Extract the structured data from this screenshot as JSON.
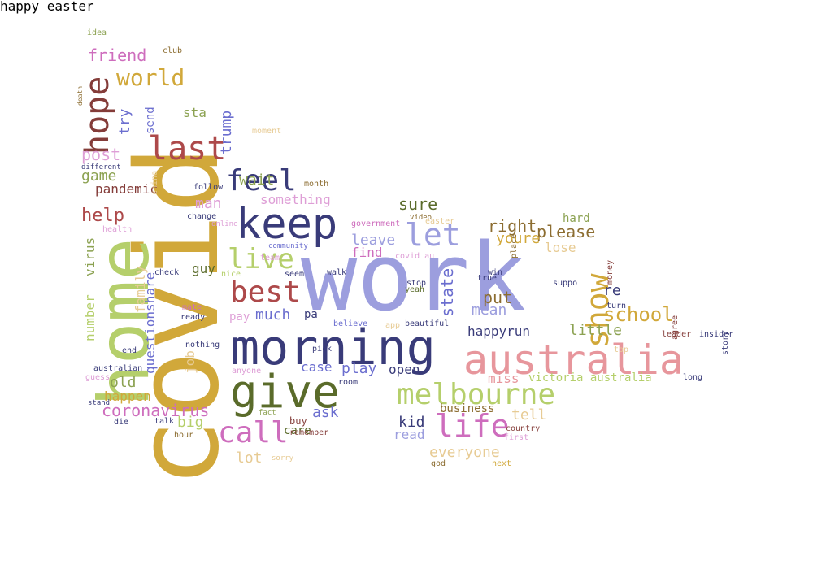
{
  "colors": {
    "background": "#ffffff",
    "olive": "#bcbd22",
    "dark_olive": "#5a6b2a",
    "gold": "#d1a83a",
    "light_green": "#b5cf6b",
    "sage": "#8ca252",
    "periwinkle": "#9c9ede",
    "navy": "#393b79",
    "slate_blue": "#6b6ecf",
    "rose": "#e7969c",
    "crimson": "#ad494a",
    "maroon": "#843c39",
    "magenta": "#ce6dbd",
    "orchid": "#de9ed6",
    "tan": "#e7cb94",
    "brown": "#8c6d31"
  },
  "words": [
    {
      "text": "covid",
      "color": "gold",
      "rot": 1
    },
    {
      "text": "work",
      "color": "periwinkle",
      "rot": 0
    },
    {
      "text": "morning",
      "color": "navy",
      "rot": 0
    },
    {
      "text": "australia",
      "color": "rose",
      "rot": 0
    },
    {
      "text": "home",
      "color": "light_green",
      "rot": 1
    },
    {
      "text": "keep",
      "color": "navy",
      "rot": 0
    },
    {
      "text": "give",
      "color": "dark_olive",
      "rot": 0
    },
    {
      "text": "melbourne",
      "color": "light_green",
      "rot": 0
    },
    {
      "text": "life",
      "color": "magenta",
      "rot": 0
    },
    {
      "text": "call",
      "color": "magenta",
      "rot": 0
    },
    {
      "text": "best",
      "color": "crimson",
      "rot": 0
    },
    {
      "text": "feel",
      "color": "navy",
      "rot": 0
    },
    {
      "text": "let",
      "color": "periwinkle",
      "rot": 0
    },
    {
      "text": "live",
      "color": "light_green",
      "rot": 0
    },
    {
      "text": "show",
      "color": "gold",
      "rot": 1
    },
    {
      "text": "hope",
      "color": "maroon",
      "rot": 1
    },
    {
      "text": "last",
      "color": "crimson",
      "rot": 0
    },
    {
      "text": "world",
      "color": "gold",
      "rot": 0
    },
    {
      "text": "school",
      "color": "gold",
      "rot": 0
    },
    {
      "text": "friend",
      "color": "magenta",
      "rot": 0
    },
    {
      "text": "help",
      "color": "crimson",
      "rot": 0
    },
    {
      "text": "coronavirus",
      "color": "magenta",
      "rot": 0
    },
    {
      "text": "everyone",
      "color": "tan",
      "rot": 0
    },
    {
      "text": "trump",
      "color": "slate_blue",
      "rot": 1
    },
    {
      "text": "try",
      "color": "slate_blue",
      "rot": 1
    },
    {
      "text": "post",
      "color": "orchid",
      "rot": 0
    },
    {
      "text": "game",
      "color": "sage",
      "rot": 0
    },
    {
      "text": "man",
      "color": "orchid",
      "rot": 0
    },
    {
      "text": "wait",
      "color": "sage",
      "rot": 0
    },
    {
      "text": "something",
      "color": "orchid",
      "rot": 0
    },
    {
      "text": "pandemic",
      "color": "maroon",
      "rot": 0
    },
    {
      "text": "family",
      "color": "tan",
      "rot": 1
    },
    {
      "text": "number",
      "color": "light_green",
      "rot": 1
    },
    {
      "text": "virus",
      "color": "sage",
      "rot": 1
    },
    {
      "text": "sure",
      "color": "dark_olive",
      "rot": 0
    },
    {
      "text": "right",
      "color": "brown",
      "rot": 0
    },
    {
      "text": "please",
      "color": "brown",
      "rot": 0
    },
    {
      "text": "leave",
      "color": "periwinkle",
      "rot": 0
    },
    {
      "text": "youre",
      "color": "gold",
      "rot": 0
    },
    {
      "text": "find",
      "color": "magenta",
      "rot": 0
    },
    {
      "text": "state",
      "color": "slate_blue",
      "rot": 1
    },
    {
      "text": "put",
      "color": "brown",
      "rot": 0
    },
    {
      "text": "mean",
      "color": "periwinkle",
      "rot": 0
    },
    {
      "text": "much",
      "color": "slate_blue",
      "rot": 0
    },
    {
      "text": "pa",
      "color": "navy",
      "rot": 0
    },
    {
      "text": "happyrun",
      "color": "navy",
      "rot": 0
    },
    {
      "text": "little",
      "color": "sage",
      "rot": 0
    },
    {
      "text": "play",
      "color": "slate_blue",
      "rot": 0
    },
    {
      "text": "open",
      "color": "navy",
      "rot": 0
    },
    {
      "text": "ask",
      "color": "slate_blue",
      "rot": 0
    },
    {
      "text": "kid",
      "color": "navy",
      "rot": 0
    },
    {
      "text": "tell",
      "color": "tan",
      "rot": 0
    },
    {
      "text": "business",
      "color": "brown",
      "rot": 0
    },
    {
      "text": "miss",
      "color": "rose",
      "rot": 0
    },
    {
      "text": "victoria australia",
      "color": "light_green",
      "rot": 0
    },
    {
      "text": "lot",
      "color": "tan",
      "rot": 0
    },
    {
      "text": "big",
      "color": "light_green",
      "rot": 0
    },
    {
      "text": "old",
      "color": "sage",
      "rot": 0
    },
    {
      "text": "happen",
      "color": "gold",
      "rot": 0
    },
    {
      "text": "questionshare",
      "color": "slate_blue",
      "rot": 1
    },
    {
      "text": "job",
      "color": "tan",
      "rot": 1
    },
    {
      "text": "case",
      "color": "slate_blue",
      "rot": 0
    },
    {
      "text": "read",
      "color": "periwinkle",
      "rot": 0
    },
    {
      "text": "care",
      "color": "dark_olive",
      "rot": 0
    },
    {
      "text": "hard",
      "color": "sage",
      "rot": 0
    },
    {
      "text": "lose",
      "color": "tan",
      "rot": 0
    },
    {
      "text": "re",
      "color": "navy",
      "rot": 0
    },
    {
      "text": "guy",
      "color": "dark_olive",
      "rot": 0
    },
    {
      "text": "pay",
      "color": "orchid",
      "rot": 0
    },
    {
      "text": "sta",
      "color": "sage",
      "rot": 0
    },
    {
      "text": "send",
      "color": "slate_blue",
      "rot": 1
    },
    {
      "text": "idea",
      "color": "sage",
      "rot": 0
    },
    {
      "text": "club",
      "color": "brown",
      "rot": 0
    },
    {
      "text": "different",
      "color": "navy",
      "rot": 0
    },
    {
      "text": "follow",
      "color": "navy",
      "rot": 0
    },
    {
      "text": "month",
      "color": "brown",
      "rot": 0
    },
    {
      "text": "change",
      "color": "navy",
      "rot": 0
    },
    {
      "text": "online",
      "color": "orchid",
      "rot": 0
    },
    {
      "text": "health",
      "color": "orchid",
      "rot": 0
    },
    {
      "text": "government",
      "color": "magenta",
      "rot": 0
    },
    {
      "text": "community",
      "color": "slate_blue",
      "rot": 0
    },
    {
      "text": "team",
      "color": "orchid",
      "rot": 0
    },
    {
      "text": "nice",
      "color": "light_green",
      "rot": 0
    },
    {
      "text": "seem",
      "color": "navy",
      "rot": 0
    },
    {
      "text": "mate",
      "color": "magenta",
      "rot": 0
    },
    {
      "text": "ready",
      "color": "navy",
      "rot": 0
    },
    {
      "text": "nothing",
      "color": "navy",
      "rot": 0
    },
    {
      "text": "australian",
      "color": "navy",
      "rot": 0
    },
    {
      "text": "guess",
      "color": "orchid",
      "rot": 0
    },
    {
      "text": "end",
      "color": "navy",
      "rot": 0
    },
    {
      "text": "anyone",
      "color": "orchid",
      "rot": 0
    },
    {
      "text": "fact",
      "color": "sage",
      "rot": 0
    },
    {
      "text": "buy",
      "color": "maroon",
      "rot": 0
    },
    {
      "text": "remember",
      "color": "maroon",
      "rot": 0
    },
    {
      "text": "sorry",
      "color": "tan",
      "rot": 0
    },
    {
      "text": "hour",
      "color": "brown",
      "rot": 0
    },
    {
      "text": "talk",
      "color": "navy",
      "rot": 0
    },
    {
      "text": "die",
      "color": "navy",
      "rot": 0
    },
    {
      "text": "stand",
      "color": "navy",
      "rot": 0
    },
    {
      "text": "pick",
      "color": "navy",
      "rot": 0
    },
    {
      "text": "room",
      "color": "navy",
      "rot": 0
    },
    {
      "text": "believe",
      "color": "slate_blue",
      "rot": 0
    },
    {
      "text": "app",
      "color": "tan",
      "rot": 0
    },
    {
      "text": "beautiful",
      "color": "navy",
      "rot": 0
    },
    {
      "text": "stop",
      "color": "navy",
      "rot": 0
    },
    {
      "text": "yeah",
      "color": "dark_olive",
      "rot": 0
    },
    {
      "text": "walk",
      "color": "navy",
      "rot": 0
    },
    {
      "text": "win",
      "color": "navy",
      "rot": 0
    },
    {
      "text": "covid au",
      "color": "orchid",
      "rot": 0
    },
    {
      "text": "true",
      "color": "navy",
      "rot": 0
    },
    {
      "text": "easter",
      "color": "tan",
      "rot": 0
    },
    {
      "text": "video",
      "color": "brown",
      "rot": 0
    },
    {
      "text": "place",
      "color": "brown",
      "rot": 1
    },
    {
      "text": "suppo",
      "color": "navy",
      "rot": 0
    },
    {
      "text": "money",
      "color": "maroon",
      "rot": 1
    },
    {
      "text": "turn",
      "color": "navy",
      "rot": 0
    },
    {
      "text": "leader",
      "color": "maroon",
      "rot": 0
    },
    {
      "text": "insider",
      "color": "navy",
      "rot": 0
    },
    {
      "text": "top",
      "color": "tan",
      "rot": 0
    },
    {
      "text": "agree",
      "color": "maroon",
      "rot": 1
    },
    {
      "text": "story",
      "color": "navy",
      "rot": 1
    },
    {
      "text": "long",
      "color": "navy",
      "rot": 0
    },
    {
      "text": "country",
      "color": "maroon",
      "rot": 0
    },
    {
      "text": "first",
      "color": "orchid",
      "rot": 0
    },
    {
      "text": "god",
      "color": "brown",
      "rot": 0
    },
    {
      "text": "next",
      "color": "gold",
      "rot": 0
    },
    {
      "text": "check",
      "color": "navy",
      "rot": 0
    },
    {
      "text": "moment",
      "color": "tan",
      "rot": 0
    },
    {
      "text": "china",
      "color": "tan",
      "rot": 1
    },
    {
      "text": "death",
      "color": "brown",
      "rot": 1
    },
    {
      "text": "happy easter",
      "color": "orchid",
      "rot": 1
    }
  ]
}
